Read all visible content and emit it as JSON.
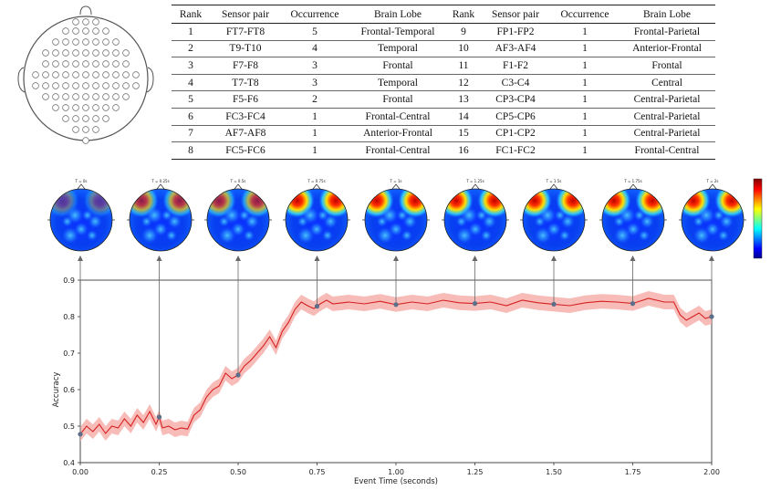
{
  "table": {
    "headers": [
      "Rank",
      "Sensor pair",
      "Occurrence",
      "Brain Lobe",
      "Rank",
      "Sensor pair",
      "Occurrence",
      "Brain Lobe"
    ],
    "rows": [
      [
        "1",
        "FT7-FT8",
        "5",
        "Frontal-Temporal",
        "9",
        "FP1-FP2",
        "1",
        "Frontal-Parietal"
      ],
      [
        "2",
        "T9-T10",
        "4",
        "Temporal",
        "10",
        "AF3-AF4",
        "1",
        "Anterior-Frontal"
      ],
      [
        "3",
        "F7-F8",
        "3",
        "Frontal",
        "11",
        "F1-F2",
        "1",
        "Frontal"
      ],
      [
        "4",
        "T7-T8",
        "3",
        "Temporal",
        "12",
        "C3-C4",
        "1",
        "Central"
      ],
      [
        "5",
        "F5-F6",
        "2",
        "Frontal",
        "13",
        "CP3-CP4",
        "1",
        "Central-Parietal"
      ],
      [
        "6",
        "FC3-FC4",
        "1",
        "Frontal-Central",
        "14",
        "CP5-CP6",
        "1",
        "Central-Parietal"
      ],
      [
        "7",
        "AF7-AF8",
        "1",
        "Anterior-Frontal",
        "15",
        "CP1-CP2",
        "1",
        "Central-Parietal"
      ],
      [
        "8",
        "FC5-FC6",
        "1",
        "Frontal-Central",
        "16",
        "FC1-FC2",
        "1",
        "Frontal-Central"
      ]
    ]
  },
  "topomaps": {
    "labels": [
      "T = 0s",
      "T = 0.25s",
      "T = 0.5s",
      "T = 0.75s",
      "T = 1s",
      "T = 1.25s",
      "T = 1.5s",
      "T = 1.75s",
      "T = 2s"
    ],
    "times": [
      0,
      0.25,
      0.5,
      0.75,
      1.0,
      1.25,
      1.5,
      1.75,
      2.0
    ]
  },
  "chart_data": {
    "type": "line",
    "xlabel": "Event Time (seconds)",
    "ylabel": "Accuracy",
    "xlim": [
      0,
      2
    ],
    "ylim": [
      0.4,
      0.9
    ],
    "xticks": [
      "0.00",
      "0.25",
      "0.50",
      "0.75",
      "1.00",
      "1.25",
      "1.50",
      "1.75",
      "2.00"
    ],
    "yticks": [
      "0.4",
      "0.5",
      "0.6",
      "0.7",
      "0.8",
      "0.9"
    ],
    "x": [
      0.0,
      0.02,
      0.04,
      0.06,
      0.08,
      0.1,
      0.12,
      0.14,
      0.16,
      0.18,
      0.2,
      0.22,
      0.24,
      0.25,
      0.26,
      0.28,
      0.3,
      0.32,
      0.34,
      0.36,
      0.38,
      0.4,
      0.42,
      0.44,
      0.46,
      0.48,
      0.5,
      0.52,
      0.54,
      0.56,
      0.58,
      0.6,
      0.62,
      0.64,
      0.66,
      0.68,
      0.7,
      0.72,
      0.74,
      0.76,
      0.78,
      0.8,
      0.85,
      0.9,
      0.95,
      1.0,
      1.05,
      1.1,
      1.15,
      1.2,
      1.25,
      1.3,
      1.35,
      1.4,
      1.45,
      1.5,
      1.55,
      1.6,
      1.65,
      1.7,
      1.75,
      1.8,
      1.85,
      1.88,
      1.9,
      1.92,
      1.94,
      1.96,
      1.98,
      2.0
    ],
    "y": [
      0.478,
      0.5,
      0.485,
      0.505,
      0.48,
      0.5,
      0.495,
      0.52,
      0.5,
      0.53,
      0.51,
      0.54,
      0.505,
      0.525,
      0.495,
      0.5,
      0.49,
      0.495,
      0.492,
      0.53,
      0.545,
      0.58,
      0.6,
      0.61,
      0.645,
      0.63,
      0.64,
      0.665,
      0.68,
      0.7,
      0.72,
      0.745,
      0.715,
      0.76,
      0.785,
      0.82,
      0.84,
      0.83,
      0.822,
      0.835,
      0.845,
      0.835,
      0.84,
      0.835,
      0.842,
      0.833,
      0.84,
      0.835,
      0.845,
      0.838,
      0.836,
      0.84,
      0.83,
      0.845,
      0.838,
      0.834,
      0.83,
      0.838,
      0.842,
      0.84,
      0.836,
      0.85,
      0.84,
      0.84,
      0.805,
      0.79,
      0.8,
      0.81,
      0.795,
      0.8
    ],
    "band": 0.02,
    "markers": [
      0,
      0.25,
      0.5,
      0.75,
      1.0,
      1.25,
      1.5,
      1.75,
      2.0
    ],
    "reference_line": 0.9
  }
}
